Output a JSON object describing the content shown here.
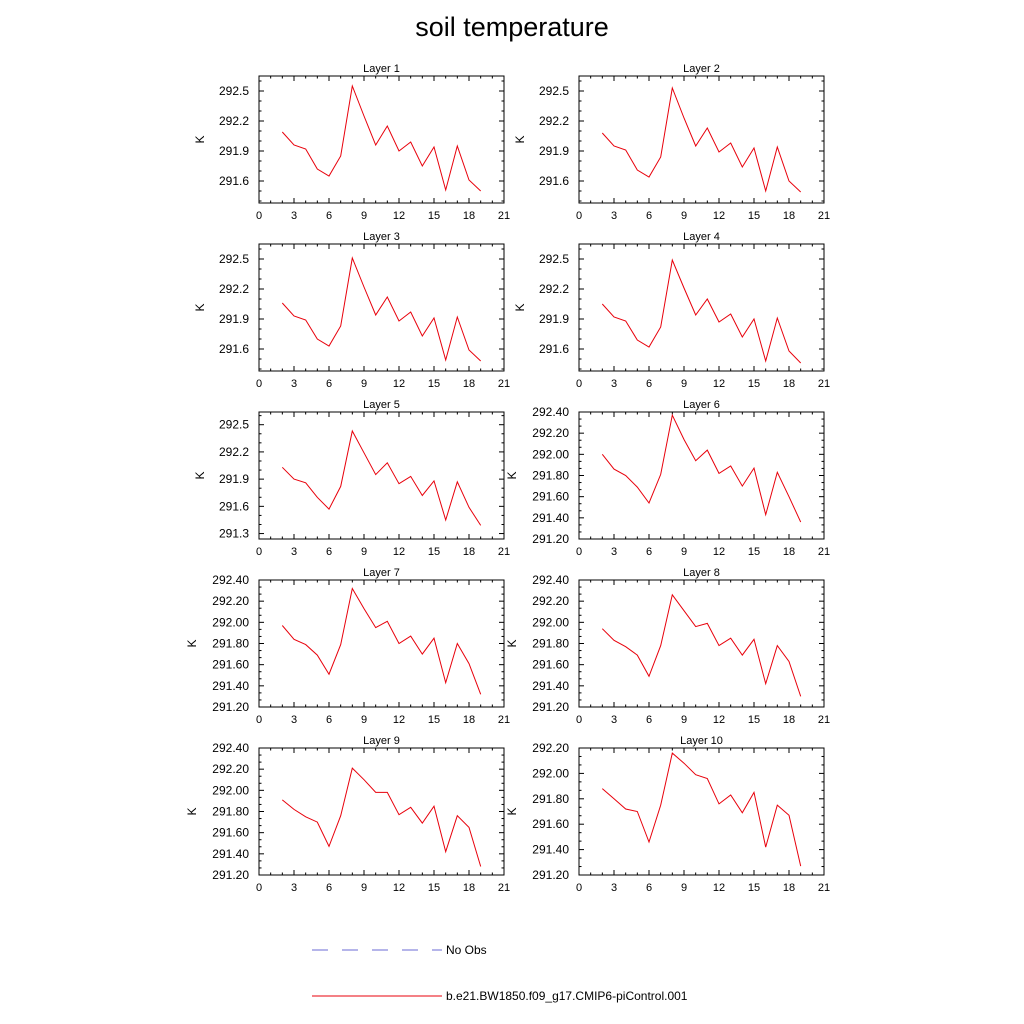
{
  "title": "soil temperature",
  "legend": [
    {
      "label": "No Obs",
      "color": "#6b6bd6",
      "style": "dashed"
    },
    {
      "label": "b.e21.BW1850.f09_g17.CMIP6-piControl.001",
      "color": "#e8000b",
      "style": "solid"
    }
  ],
  "chart_data": [
    {
      "type": "line",
      "title": "Layer 1",
      "xlabel": "",
      "ylabel": "K",
      "xlim": [
        0,
        21
      ],
      "ylim": [
        291.38,
        292.65
      ],
      "xticks": [
        0,
        3,
        6,
        9,
        12,
        15,
        18,
        21
      ],
      "yticks": [
        291.6,
        291.9,
        292.2,
        292.5
      ],
      "ytick_labels": [
        "291.6",
        "291.9",
        "292.2",
        "292.5"
      ],
      "series": [
        {
          "color": "#e8000b",
          "x": [
            2,
            3,
            4,
            5,
            6,
            7,
            8,
            9,
            10,
            11,
            12,
            13,
            14,
            15,
            16,
            17,
            18,
            19
          ],
          "y": [
            292.09,
            291.96,
            291.92,
            291.72,
            291.65,
            291.85,
            292.55,
            292.25,
            291.96,
            292.15,
            291.9,
            291.99,
            291.75,
            291.94,
            291.51,
            291.95,
            291.61,
            291.5
          ]
        }
      ]
    },
    {
      "type": "line",
      "title": "Layer 2",
      "xlabel": "",
      "ylabel": "K",
      "xlim": [
        0,
        21
      ],
      "ylim": [
        291.38,
        292.65
      ],
      "xticks": [
        0,
        3,
        6,
        9,
        12,
        15,
        18,
        21
      ],
      "yticks": [
        291.6,
        291.9,
        292.2,
        292.5
      ],
      "ytick_labels": [
        "291.6",
        "291.9",
        "292.2",
        "292.5"
      ],
      "series": [
        {
          "color": "#e8000b",
          "x": [
            2,
            3,
            4,
            5,
            6,
            7,
            8,
            9,
            10,
            11,
            12,
            13,
            14,
            15,
            16,
            17,
            18,
            19
          ],
          "y": [
            292.08,
            291.95,
            291.91,
            291.71,
            291.64,
            291.84,
            292.53,
            292.23,
            291.95,
            292.13,
            291.89,
            291.98,
            291.74,
            291.93,
            291.5,
            291.94,
            291.6,
            291.49
          ]
        }
      ]
    },
    {
      "type": "line",
      "title": "Layer 3",
      "xlabel": "",
      "ylabel": "K",
      "xlim": [
        0,
        21
      ],
      "ylim": [
        291.38,
        292.65
      ],
      "xticks": [
        0,
        3,
        6,
        9,
        12,
        15,
        18,
        21
      ],
      "yticks": [
        291.6,
        291.9,
        292.2,
        292.5
      ],
      "ytick_labels": [
        "291.6",
        "291.9",
        "292.2",
        "292.5"
      ],
      "series": [
        {
          "color": "#e8000b",
          "x": [
            2,
            3,
            4,
            5,
            6,
            7,
            8,
            9,
            10,
            11,
            12,
            13,
            14,
            15,
            16,
            17,
            18,
            19
          ],
          "y": [
            292.06,
            291.93,
            291.89,
            291.7,
            291.63,
            291.83,
            292.51,
            292.22,
            291.94,
            292.12,
            291.88,
            291.97,
            291.73,
            291.91,
            291.49,
            291.92,
            291.59,
            291.48
          ]
        }
      ]
    },
    {
      "type": "line",
      "title": "Layer 4",
      "xlabel": "",
      "ylabel": "K",
      "xlim": [
        0,
        21
      ],
      "ylim": [
        291.38,
        292.65
      ],
      "xticks": [
        0,
        3,
        6,
        9,
        12,
        15,
        18,
        21
      ],
      "yticks": [
        291.6,
        291.9,
        292.2,
        292.5
      ],
      "ytick_labels": [
        "291.6",
        "291.9",
        "292.2",
        "292.5"
      ],
      "series": [
        {
          "color": "#e8000b",
          "x": [
            2,
            3,
            4,
            5,
            6,
            7,
            8,
            9,
            10,
            11,
            12,
            13,
            14,
            15,
            16,
            17,
            18,
            19
          ],
          "y": [
            292.05,
            291.92,
            291.88,
            291.69,
            291.62,
            291.82,
            292.49,
            292.21,
            291.94,
            292.1,
            291.87,
            291.95,
            291.72,
            291.9,
            291.48,
            291.91,
            291.58,
            291.46
          ]
        }
      ]
    },
    {
      "type": "line",
      "title": "Layer 5",
      "xlabel": "",
      "ylabel": "K",
      "xlim": [
        0,
        21
      ],
      "ylim": [
        291.24,
        292.64
      ],
      "xticks": [
        0,
        3,
        6,
        9,
        12,
        15,
        18,
        21
      ],
      "yticks": [
        291.3,
        291.6,
        291.9,
        292.2,
        292.5
      ],
      "ytick_labels": [
        "291.3",
        "291.6",
        "291.9",
        "292.2",
        "292.5"
      ],
      "series": [
        {
          "color": "#e8000b",
          "x": [
            2,
            3,
            4,
            5,
            6,
            7,
            8,
            9,
            10,
            11,
            12,
            13,
            14,
            15,
            16,
            17,
            18,
            19
          ],
          "y": [
            292.03,
            291.9,
            291.86,
            291.7,
            291.57,
            291.82,
            292.43,
            292.19,
            291.95,
            292.08,
            291.85,
            291.93,
            291.72,
            291.88,
            291.45,
            291.87,
            291.59,
            291.39
          ]
        }
      ]
    },
    {
      "type": "line",
      "title": "Layer 6",
      "xlabel": "",
      "ylabel": "K",
      "xlim": [
        0,
        21
      ],
      "ylim": [
        291.2,
        292.4
      ],
      "xticks": [
        0,
        3,
        6,
        9,
        12,
        15,
        18,
        21
      ],
      "yticks": [
        291.2,
        291.4,
        291.6,
        291.8,
        292.0,
        292.2,
        292.4
      ],
      "ytick_labels": [
        "291.20",
        "291.40",
        "291.60",
        "291.80",
        "292.00",
        "292.20",
        "292.40"
      ],
      "series": [
        {
          "color": "#e8000b",
          "x": [
            2,
            3,
            4,
            5,
            6,
            7,
            8,
            9,
            10,
            11,
            12,
            13,
            14,
            15,
            16,
            17,
            18,
            19
          ],
          "y": [
            292.0,
            291.86,
            291.8,
            291.69,
            291.54,
            291.81,
            292.37,
            292.14,
            291.94,
            292.04,
            291.82,
            291.89,
            291.7,
            291.87,
            291.43,
            291.83,
            291.6,
            291.36
          ]
        }
      ]
    },
    {
      "type": "line",
      "title": "Layer 7",
      "xlabel": "",
      "ylabel": "K",
      "xlim": [
        0,
        21
      ],
      "ylim": [
        291.2,
        292.4
      ],
      "xticks": [
        0,
        3,
        6,
        9,
        12,
        15,
        18,
        21
      ],
      "yticks": [
        291.2,
        291.4,
        291.6,
        291.8,
        292.0,
        292.2,
        292.4
      ],
      "ytick_labels": [
        "291.20",
        "291.40",
        "291.60",
        "291.80",
        "292.00",
        "292.20",
        "292.40"
      ],
      "series": [
        {
          "color": "#e8000b",
          "x": [
            2,
            3,
            4,
            5,
            6,
            7,
            8,
            9,
            10,
            11,
            12,
            13,
            14,
            15,
            16,
            17,
            18,
            19
          ],
          "y": [
            291.97,
            291.84,
            291.79,
            291.69,
            291.51,
            291.79,
            292.32,
            292.13,
            291.95,
            292.01,
            291.8,
            291.87,
            291.7,
            291.85,
            291.43,
            291.8,
            291.61,
            291.32
          ]
        }
      ]
    },
    {
      "type": "line",
      "title": "Layer 8",
      "xlabel": "",
      "ylabel": "K",
      "xlim": [
        0,
        21
      ],
      "ylim": [
        291.2,
        292.4
      ],
      "xticks": [
        0,
        3,
        6,
        9,
        12,
        15,
        18,
        21
      ],
      "yticks": [
        291.2,
        291.4,
        291.6,
        291.8,
        292.0,
        292.2,
        292.4
      ],
      "ytick_labels": [
        "291.20",
        "291.40",
        "291.60",
        "291.80",
        "292.00",
        "292.20",
        "292.40"
      ],
      "series": [
        {
          "color": "#e8000b",
          "x": [
            2,
            3,
            4,
            5,
            6,
            7,
            8,
            9,
            10,
            11,
            12,
            13,
            14,
            15,
            16,
            17,
            18,
            19
          ],
          "y": [
            291.94,
            291.83,
            291.77,
            291.69,
            291.49,
            291.78,
            292.26,
            292.11,
            291.96,
            291.99,
            291.78,
            291.85,
            291.69,
            291.84,
            291.42,
            291.78,
            291.63,
            291.3
          ]
        }
      ]
    },
    {
      "type": "line",
      "title": "Layer 9",
      "xlabel": "",
      "ylabel": "K",
      "xlim": [
        0,
        21
      ],
      "ylim": [
        291.2,
        292.4
      ],
      "xticks": [
        0,
        3,
        6,
        9,
        12,
        15,
        18,
        21
      ],
      "yticks": [
        291.2,
        291.4,
        291.6,
        291.8,
        292.0,
        292.2,
        292.4
      ],
      "ytick_labels": [
        "291.20",
        "291.40",
        "291.60",
        "291.80",
        "292.00",
        "292.20",
        "292.40"
      ],
      "series": [
        {
          "color": "#e8000b",
          "x": [
            2,
            3,
            4,
            5,
            6,
            7,
            8,
            9,
            10,
            11,
            12,
            13,
            14,
            15,
            16,
            17,
            18,
            19
          ],
          "y": [
            291.91,
            291.82,
            291.75,
            291.7,
            291.47,
            291.76,
            292.21,
            292.1,
            291.98,
            291.98,
            291.77,
            291.84,
            291.69,
            291.85,
            291.42,
            291.76,
            291.65,
            291.28
          ]
        }
      ]
    },
    {
      "type": "line",
      "title": "Layer 10",
      "xlabel": "",
      "ylabel": "K",
      "xlim": [
        0,
        21
      ],
      "ylim": [
        291.2,
        292.2
      ],
      "xticks": [
        0,
        3,
        6,
        9,
        12,
        15,
        18,
        21
      ],
      "yticks": [
        291.2,
        291.4,
        291.6,
        291.8,
        292.0,
        292.2
      ],
      "ytick_labels": [
        "291.20",
        "291.40",
        "291.60",
        "291.80",
        "292.00",
        "292.20"
      ],
      "series": [
        {
          "color": "#e8000b",
          "x": [
            2,
            3,
            4,
            5,
            6,
            7,
            8,
            9,
            10,
            11,
            12,
            13,
            14,
            15,
            16,
            17,
            18,
            19
          ],
          "y": [
            291.88,
            291.8,
            291.72,
            291.7,
            291.46,
            291.75,
            292.16,
            292.08,
            291.99,
            291.96,
            291.76,
            291.83,
            291.69,
            291.85,
            291.42,
            291.75,
            291.67,
            291.27
          ]
        }
      ]
    }
  ]
}
